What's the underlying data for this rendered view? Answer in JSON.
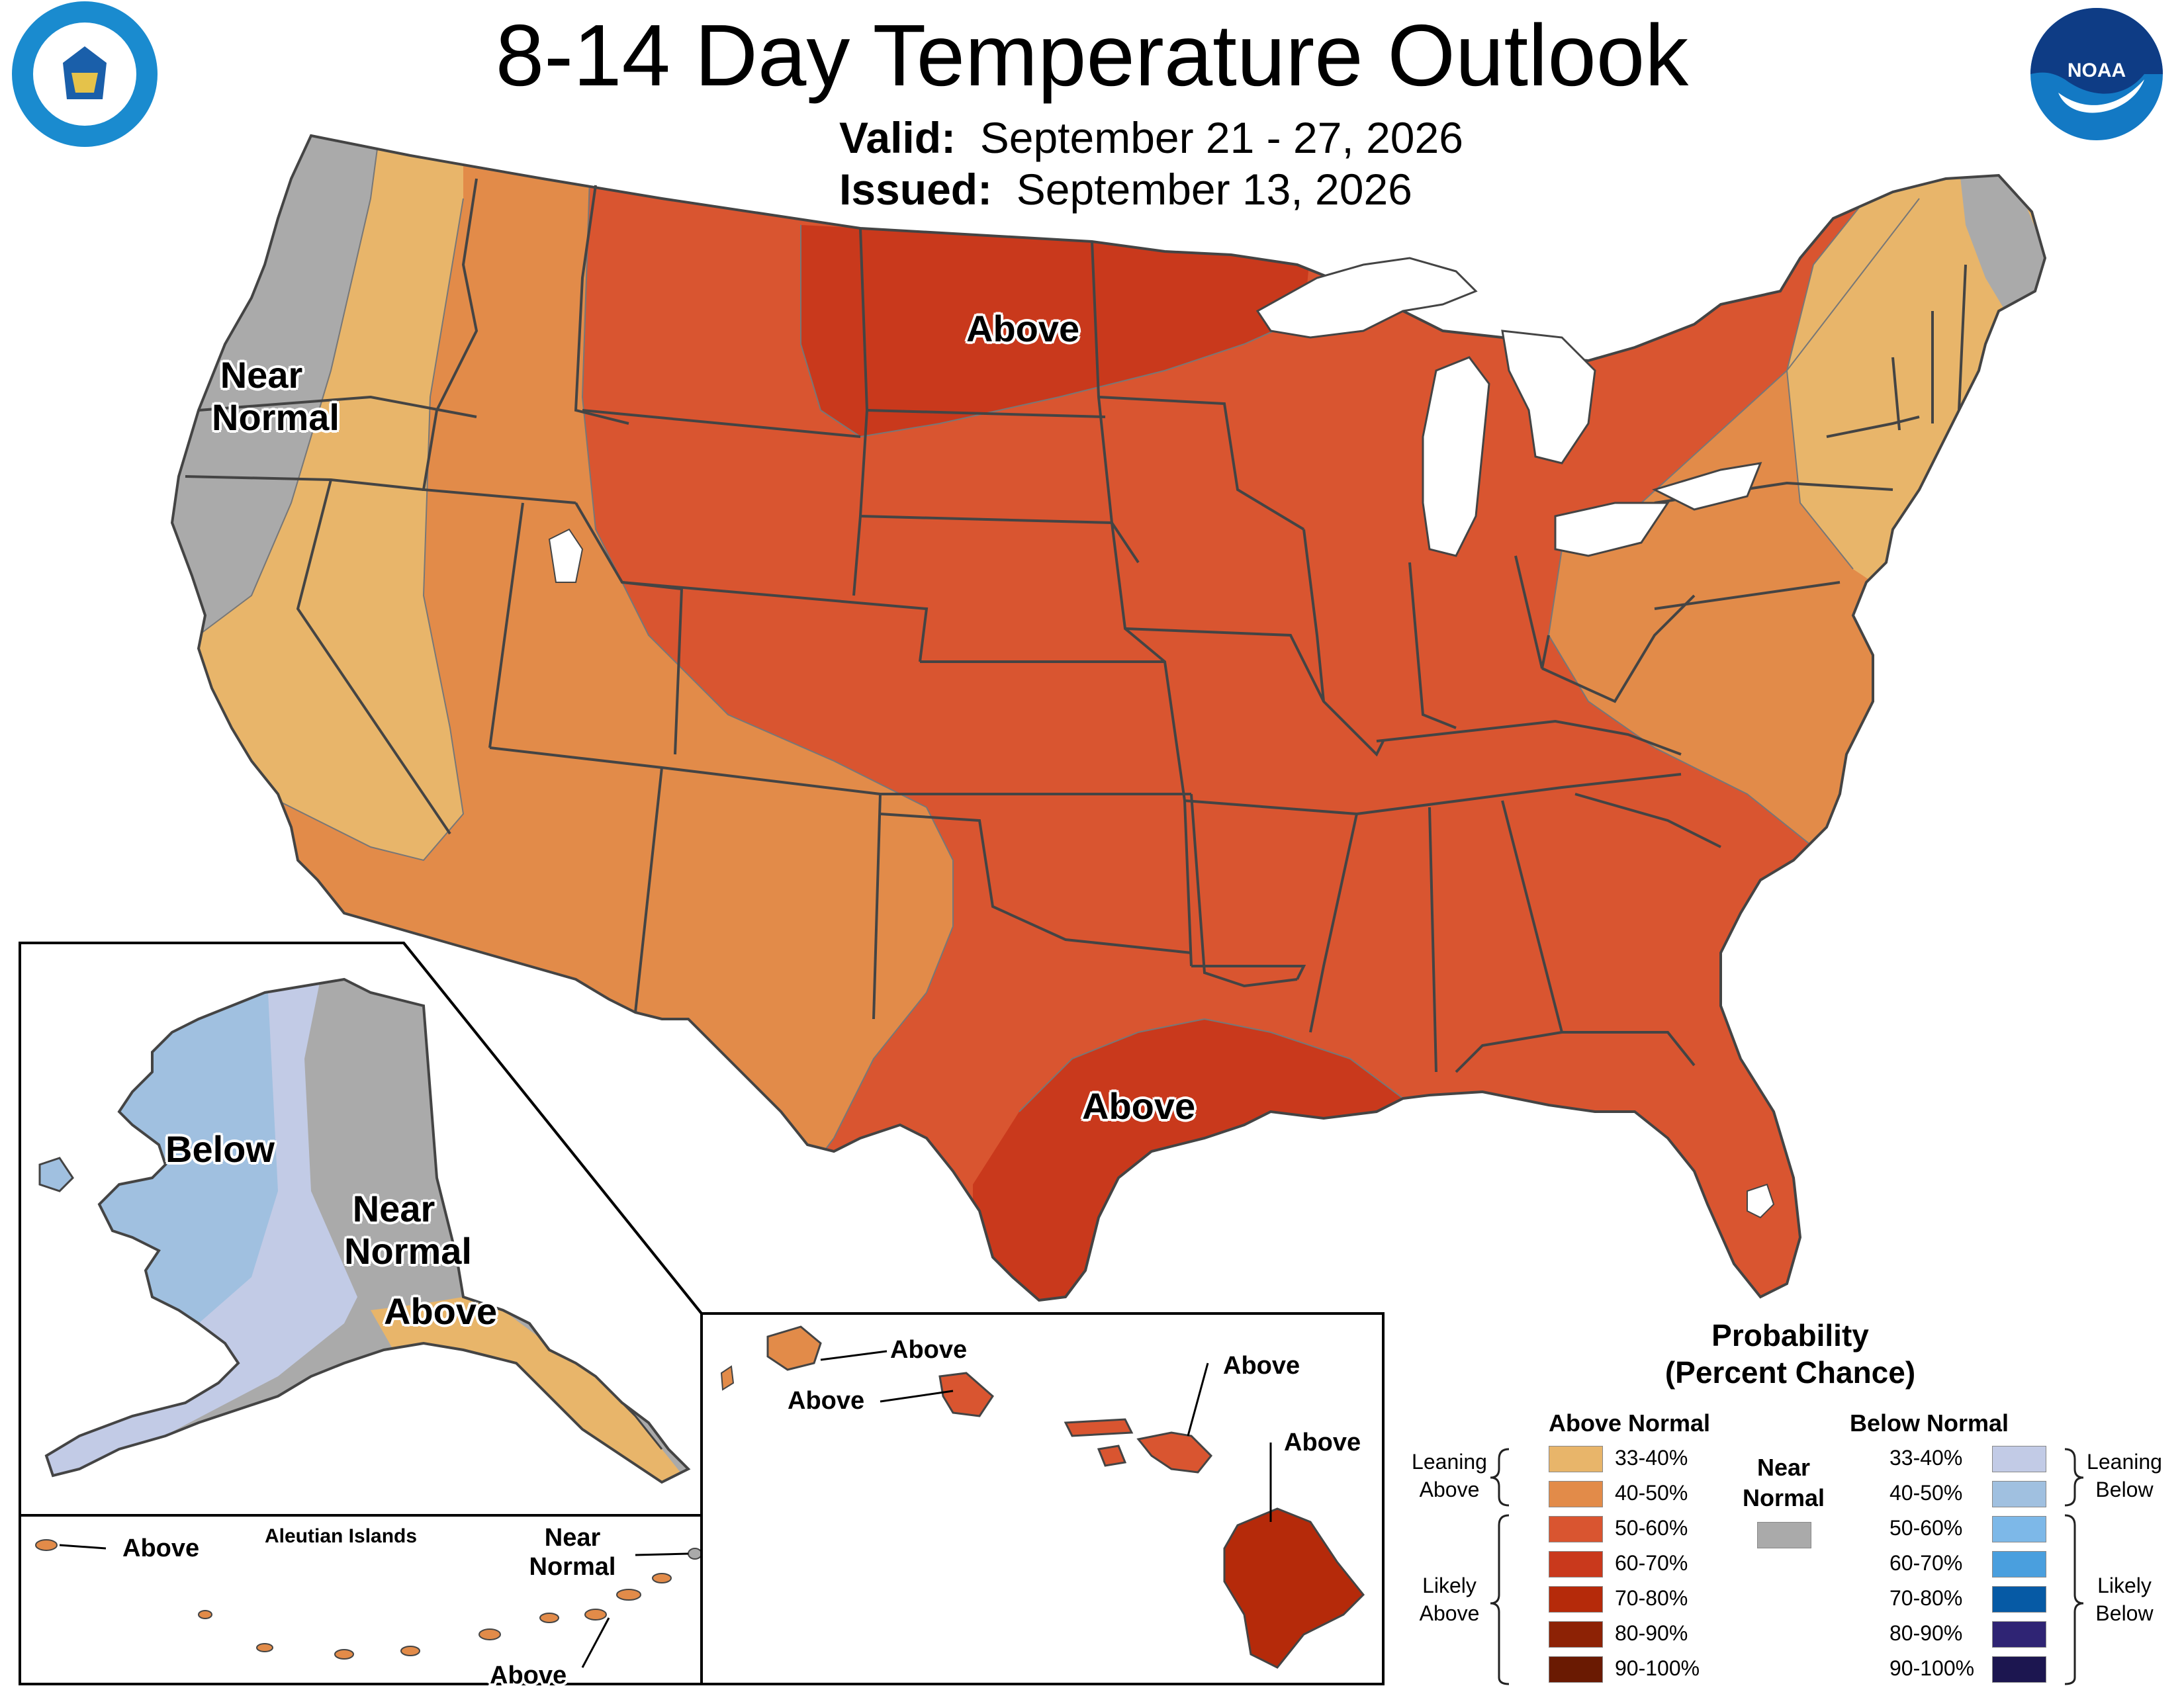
{
  "header": {
    "title": "8-14 Day Temperature Outlook",
    "valid_label": "Valid:",
    "valid_value": "September 21 - 27, 2026",
    "issued_label": "Issued:",
    "issued_value": "September 13, 2026"
  },
  "logos": {
    "commerce": "Department of Commerce seal",
    "noaa_text": "NOAA"
  },
  "colors": {
    "above_33_40": "#e8b56a",
    "above_40_50": "#e28b49",
    "above_50_60": "#d95530",
    "above_60_70": "#c9391c",
    "above_70_80": "#b52a0a",
    "above_80_90": "#8d2205",
    "above_90_100": "#6a1a02",
    "near_normal": "#aaaaaa",
    "below_33_40": "#c2cbe6",
    "below_40_50": "#a0c0e0",
    "below_50_60": "#7db8e8",
    "below_60_70": "#4a9fde",
    "below_70_80": "#065aa5",
    "below_80_90": "#2f2474",
    "below_90_100": "#1c1650",
    "land_boundary": "#444444",
    "lakes": "#ffffff"
  },
  "map_labels": {
    "conus_near_normal_1": "Near",
    "conus_near_normal_2": "Normal",
    "conus_above_north": "Above",
    "conus_above_south": "Above",
    "alaska_below": "Below",
    "alaska_near_normal_1": "Near",
    "alaska_near_normal_2": "Normal",
    "alaska_above": "Above",
    "aleutian_title": "Aleutian Islands",
    "aleutian_above_west": "Above",
    "aleutian_near_normal_1": "Near",
    "aleutian_near_normal_2": "Normal",
    "aleutian_above_east": "Above",
    "hawaii_kauai": "Above",
    "hawaii_oahu": "Above",
    "hawaii_maui": "Above",
    "hawaii_big_island": "Above"
  },
  "legend": {
    "title_1": "Probability",
    "title_2": "(Percent Chance)",
    "above_header": "Above Normal",
    "below_header": "Below Normal",
    "near_header_1": "Near",
    "near_header_2": "Normal",
    "leaning_above_1": "Leaning",
    "leaning_above_2": "Above",
    "likely_above_1": "Likely",
    "likely_above_2": "Above",
    "leaning_below_1": "Leaning",
    "leaning_below_2": "Below",
    "likely_below_1": "Likely",
    "likely_below_2": "Below",
    "above_ranges": [
      "33-40%",
      "40-50%",
      "50-60%",
      "60-70%",
      "70-80%",
      "80-90%",
      "90-100%"
    ],
    "below_ranges": [
      "33-40%",
      "40-50%",
      "50-60%",
      "60-70%",
      "70-80%",
      "80-90%",
      "90-100%"
    ]
  }
}
